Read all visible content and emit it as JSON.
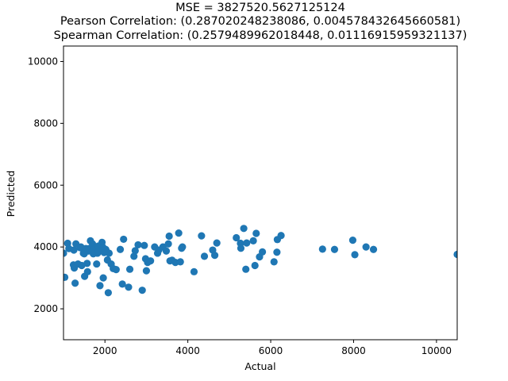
{
  "chart_data": {
    "type": "scatter",
    "title_lines": [
      "MSE = 3827520.5627125124",
      "Pearson Correlation: (0.287020248238086, 0.004578432645660581)",
      "Spearman Correlation: (0.2579489962018448, 0.01116915959321137)"
    ],
    "xlabel": "Actual",
    "ylabel": "Predicted",
    "xlim": [
      1000,
      10500
    ],
    "ylim": [
      1000,
      10500
    ],
    "xticks": [
      2000,
      4000,
      6000,
      8000,
      10000
    ],
    "yticks": [
      2000,
      4000,
      6000,
      8000,
      10000
    ],
    "grid": false,
    "marker_color": "#1f77b4",
    "series": [
      {
        "points": [
          [
            1000,
            3800
          ],
          [
            1030,
            3020
          ],
          [
            1100,
            4120
          ],
          [
            1130,
            3950
          ],
          [
            1240,
            3420
          ],
          [
            1250,
            3900
          ],
          [
            1260,
            3320
          ],
          [
            1280,
            2830
          ],
          [
            1300,
            4100
          ],
          [
            1350,
            3450
          ],
          [
            1400,
            3980
          ],
          [
            1420,
            4000
          ],
          [
            1440,
            3400
          ],
          [
            1480,
            3800
          ],
          [
            1500,
            3780
          ],
          [
            1510,
            3050
          ],
          [
            1540,
            3950
          ],
          [
            1570,
            3470
          ],
          [
            1580,
            3200
          ],
          [
            1600,
            3870
          ],
          [
            1620,
            3950
          ],
          [
            1650,
            4200
          ],
          [
            1690,
            3850
          ],
          [
            1700,
            4100
          ],
          [
            1720,
            3780
          ],
          [
            1740,
            3920
          ],
          [
            1770,
            3860
          ],
          [
            1800,
            3450
          ],
          [
            1820,
            3800
          ],
          [
            1840,
            4030
          ],
          [
            1850,
            3860
          ],
          [
            1880,
            2750
          ],
          [
            1920,
            4050
          ],
          [
            1930,
            4150
          ],
          [
            1950,
            3990
          ],
          [
            1960,
            3000
          ],
          [
            1980,
            3820
          ],
          [
            2020,
            3920
          ],
          [
            2040,
            3850
          ],
          [
            2060,
            3580
          ],
          [
            2080,
            2520
          ],
          [
            2100,
            3800
          ],
          [
            2150,
            3450
          ],
          [
            2200,
            3300
          ],
          [
            2270,
            3270
          ],
          [
            2370,
            3920
          ],
          [
            2420,
            2800
          ],
          [
            2450,
            4250
          ],
          [
            2570,
            2700
          ],
          [
            2600,
            3280
          ],
          [
            2700,
            3700
          ],
          [
            2730,
            3880
          ],
          [
            2800,
            4070
          ],
          [
            2900,
            2600
          ],
          [
            2950,
            4050
          ],
          [
            2980,
            3620
          ],
          [
            3000,
            3230
          ],
          [
            3030,
            3500
          ],
          [
            3100,
            3550
          ],
          [
            3200,
            4000
          ],
          [
            3270,
            3800
          ],
          [
            3300,
            3900
          ],
          [
            3400,
            4000
          ],
          [
            3480,
            3870
          ],
          [
            3530,
            4100
          ],
          [
            3550,
            4350
          ],
          [
            3570,
            3550
          ],
          [
            3620,
            3570
          ],
          [
            3700,
            3500
          ],
          [
            3780,
            4450
          ],
          [
            3820,
            3520
          ],
          [
            3850,
            3960
          ],
          [
            3870,
            4000
          ],
          [
            4150,
            3200
          ],
          [
            4330,
            4360
          ],
          [
            4400,
            3700
          ],
          [
            4600,
            3900
          ],
          [
            4650,
            3730
          ],
          [
            4700,
            4130
          ],
          [
            5170,
            4300
          ],
          [
            5270,
            4120
          ],
          [
            5280,
            3960
          ],
          [
            5350,
            4600
          ],
          [
            5400,
            3280
          ],
          [
            5420,
            4130
          ],
          [
            5580,
            4200
          ],
          [
            5620,
            3400
          ],
          [
            5650,
            4440
          ],
          [
            5730,
            3680
          ],
          [
            5800,
            3840
          ],
          [
            6080,
            3520
          ],
          [
            6150,
            3830
          ],
          [
            6160,
            4240
          ],
          [
            6250,
            4370
          ],
          [
            7250,
            3930
          ],
          [
            7540,
            3920
          ],
          [
            7980,
            4220
          ],
          [
            8030,
            3750
          ],
          [
            8300,
            4000
          ],
          [
            8480,
            3920
          ],
          [
            10500,
            3760
          ]
        ]
      }
    ]
  }
}
